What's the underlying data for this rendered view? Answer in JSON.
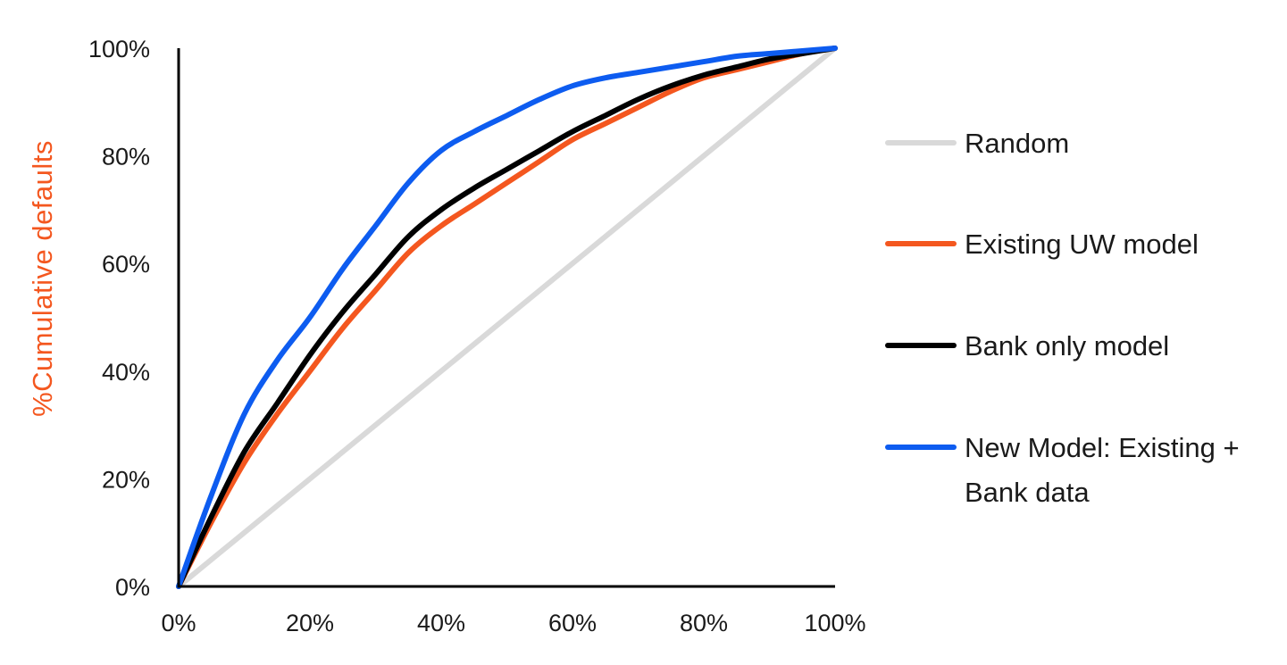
{
  "chart_data": {
    "type": "line",
    "title": "",
    "xlabel": "",
    "ylabel": "%Cumulative defaults",
    "ylabel_color": "#f4571f",
    "xlim": [
      0,
      100
    ],
    "ylim": [
      0,
      100
    ],
    "x_ticks": [
      "0%",
      "20%",
      "40%",
      "60%",
      "80%",
      "100%"
    ],
    "y_ticks": [
      "0%",
      "20%",
      "40%",
      "60%",
      "80%",
      "100%"
    ],
    "grid": false,
    "legend_position": "right",
    "series": [
      {
        "name": "Random",
        "color": "#d9d9d9",
        "x": [
          0,
          100
        ],
        "y": [
          0,
          100
        ]
      },
      {
        "name": "Existing UW model",
        "color": "#f4571f",
        "x": [
          0,
          5,
          10,
          15,
          20,
          25,
          30,
          35,
          40,
          45,
          50,
          55,
          60,
          65,
          70,
          75,
          80,
          85,
          90,
          95,
          100
        ],
        "y": [
          0,
          12,
          23,
          32,
          40,
          48,
          55,
          62,
          67,
          71,
          75,
          79,
          83,
          86,
          89,
          92,
          94.5,
          96,
          97.5,
          99,
          100
        ]
      },
      {
        "name": "Bank only model",
        "color": "#000000",
        "x": [
          0,
          5,
          10,
          15,
          20,
          25,
          30,
          35,
          40,
          45,
          50,
          55,
          60,
          65,
          70,
          75,
          80,
          85,
          90,
          95,
          100
        ],
        "y": [
          0,
          13,
          25,
          34,
          43,
          51,
          58,
          65,
          70,
          74,
          77.5,
          81,
          84.5,
          87.5,
          90.5,
          93,
          95,
          96.5,
          98,
          99,
          100
        ]
      },
      {
        "name": "New Model: Existing + Bank data",
        "color": "#0d5cf0",
        "x": [
          0,
          5,
          10,
          15,
          20,
          25,
          30,
          35,
          40,
          45,
          50,
          55,
          60,
          65,
          70,
          75,
          80,
          85,
          90,
          95,
          100
        ],
        "y": [
          0,
          17,
          32,
          42,
          50,
          59,
          67,
          75,
          81,
          84.5,
          87.5,
          90.5,
          93,
          94.5,
          95.5,
          96.5,
          97.5,
          98.5,
          99,
          99.5,
          100
        ]
      }
    ],
    "legend_lines": [
      [
        "Random"
      ],
      [
        "Existing UW model"
      ],
      [
        "Bank only model"
      ],
      [
        "New Model: Existing +",
        "Bank data"
      ]
    ]
  }
}
